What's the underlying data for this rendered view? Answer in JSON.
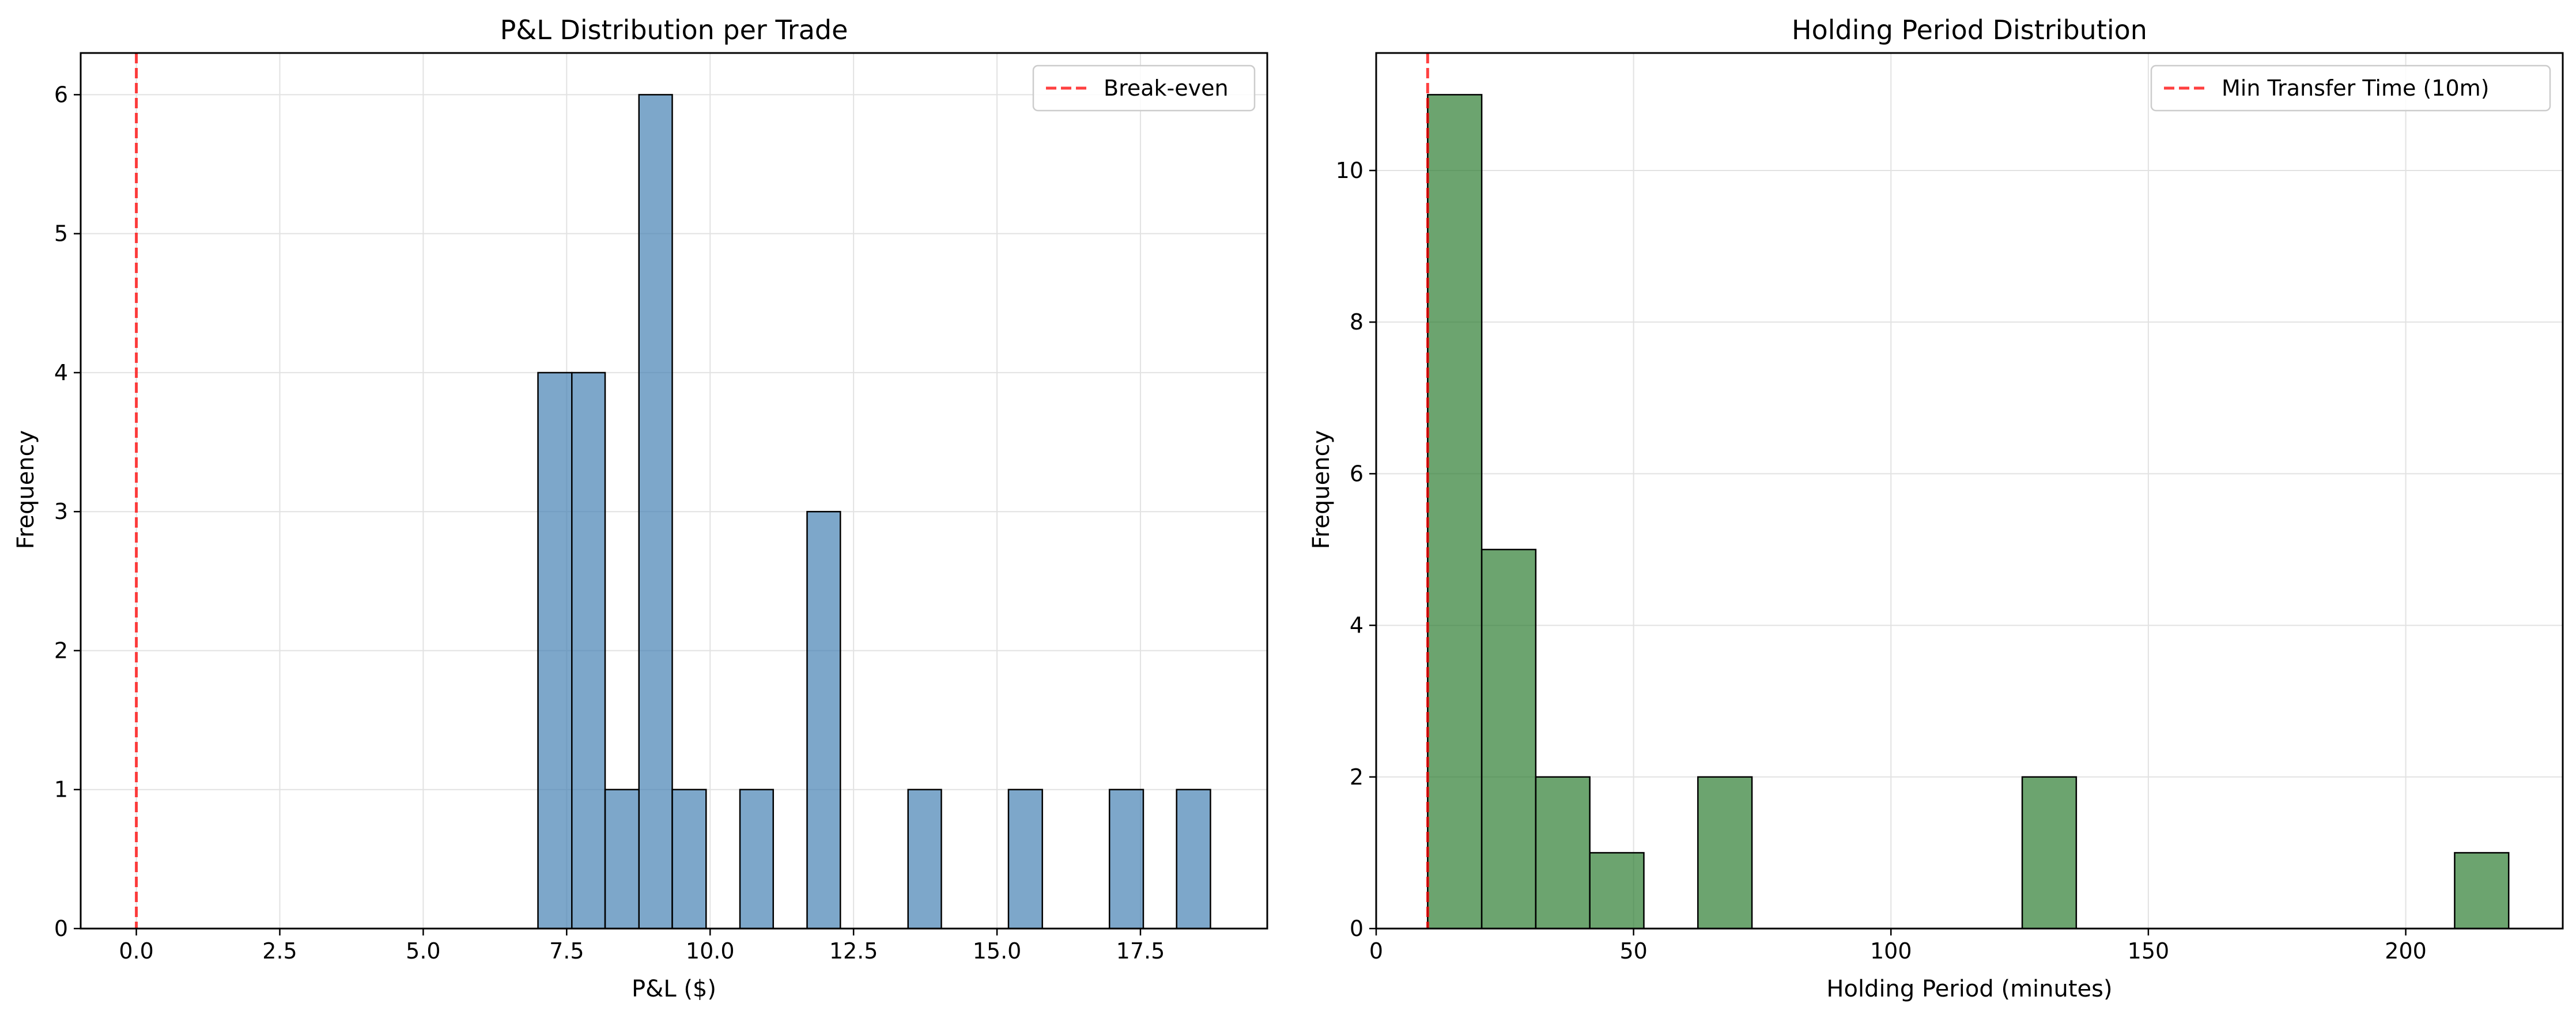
{
  "chart_data": [
    {
      "type": "bar",
      "title": "P&L Distribution per Trade",
      "xlabel": "P&L ($)",
      "ylabel": "Frequency",
      "xlim": [
        -0.97,
        19.71
      ],
      "ylim": [
        0,
        6.3
      ],
      "xticks": [
        0,
        2.5,
        5,
        7.5,
        10,
        12.5,
        15,
        17.5
      ],
      "xtick_labels": [
        "0.0",
        "2.5",
        "5.0",
        "7.5",
        "10.0",
        "12.5",
        "15.0",
        "17.5"
      ],
      "yticks": [
        0,
        1,
        2,
        3,
        4,
        5,
        6
      ],
      "ytick_labels": [
        "0",
        "1",
        "2",
        "3",
        "4",
        "5",
        "6"
      ],
      "grid": true,
      "bar_color": "#4682b4",
      "bins": [
        {
          "x0": 7.0,
          "x1": 7.59,
          "count": 4
        },
        {
          "x0": 7.59,
          "x1": 8.17,
          "count": 4
        },
        {
          "x0": 8.17,
          "x1": 8.76,
          "count": 1
        },
        {
          "x0": 8.76,
          "x1": 9.34,
          "count": 6
        },
        {
          "x0": 9.34,
          "x1": 9.93,
          "count": 1
        },
        {
          "x0": 10.52,
          "x1": 11.1,
          "count": 1
        },
        {
          "x0": 11.69,
          "x1": 12.27,
          "count": 3
        },
        {
          "x0": 13.45,
          "x1": 14.03,
          "count": 1
        },
        {
          "x0": 15.2,
          "x1": 15.79,
          "count": 1
        },
        {
          "x0": 16.96,
          "x1": 17.55,
          "count": 1
        },
        {
          "x0": 18.13,
          "x1": 18.72,
          "count": 1
        }
      ],
      "reference_line": {
        "x": 0,
        "label": "Break-even",
        "color": "#ff0000"
      },
      "legend_placement": "top-right"
    },
    {
      "type": "bar",
      "title": "Holding Period Distribution",
      "xlabel": "Holding Period (minutes)",
      "ylabel": "Frequency",
      "xlim": [
        0,
        230.5
      ],
      "ylim": [
        0,
        11.55
      ],
      "xticks": [
        0,
        50,
        100,
        150,
        200
      ],
      "xtick_labels": [
        "0",
        "50",
        "100",
        "150",
        "200"
      ],
      "yticks": [
        0,
        2,
        4,
        6,
        8,
        10
      ],
      "ytick_labels": [
        "0",
        "2",
        "4",
        "6",
        "8",
        "10"
      ],
      "grid": true,
      "bar_color": "#2e7d32",
      "bins": [
        {
          "x0": 10.0,
          "x1": 20.5,
          "count": 11
        },
        {
          "x0": 20.5,
          "x1": 31.0,
          "count": 5
        },
        {
          "x0": 31.0,
          "x1": 41.5,
          "count": 2
        },
        {
          "x0": 41.5,
          "x1": 52.0,
          "count": 1
        },
        {
          "x0": 62.5,
          "x1": 73.0,
          "count": 2
        },
        {
          "x0": 125.5,
          "x1": 136.0,
          "count": 2
        },
        {
          "x0": 209.5,
          "x1": 220.0,
          "count": 1
        }
      ],
      "reference_line": {
        "x": 10,
        "label": "Min Transfer Time (10m)",
        "color": "#ff0000"
      },
      "legend_placement": "top-right"
    }
  ]
}
